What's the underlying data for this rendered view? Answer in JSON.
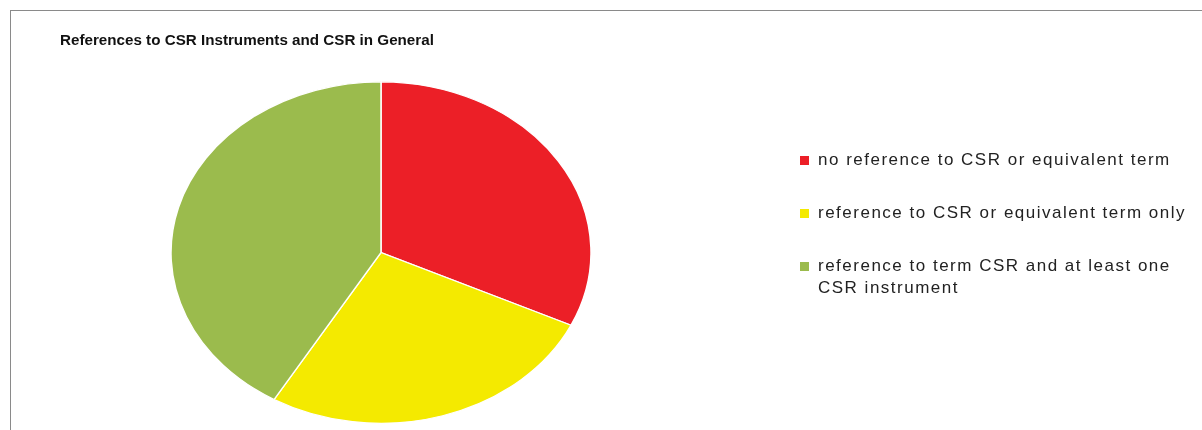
{
  "chart_data": {
    "type": "pie",
    "title": "References to CSR Instruments and CSR in General",
    "categories": [
      "no reference to CSR or equivalent term",
      "reference to CSR or equivalent term only",
      "reference to term CSR and at least one CSR instrument"
    ],
    "values": [
      32,
      26.5,
      41.5
    ],
    "colors": [
      "#ec1f27",
      "#f4ea00",
      "#9bbb4d"
    ],
    "legend": "right"
  }
}
